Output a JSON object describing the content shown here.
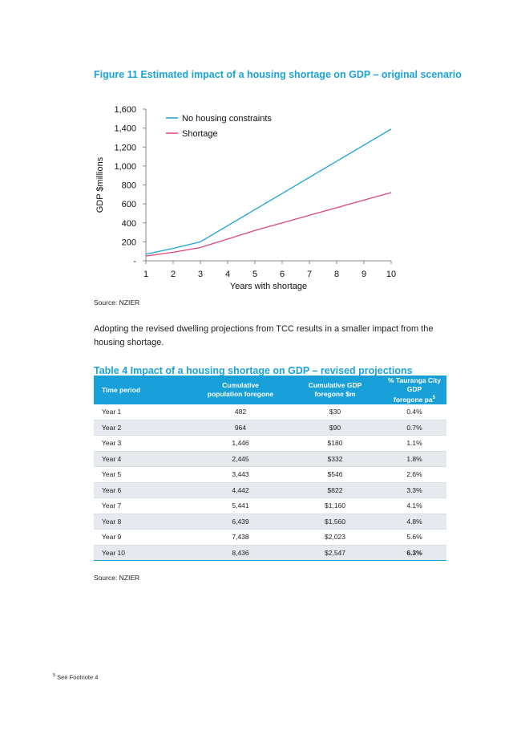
{
  "figure": {
    "title": "Figure 11 Estimated impact of a housing shortage on GDP – original scenario",
    "source": "Source: NZIER"
  },
  "chart_data": {
    "type": "line",
    "title": "Figure 11 Estimated impact of a housing shortage on GDP – original scenario",
    "xlabel": "Years with shortage",
    "ylabel": "GDP $millions",
    "x": [
      1,
      2,
      3,
      4,
      5,
      6,
      7,
      8,
      9,
      10
    ],
    "x_ticks": [
      "1",
      "2",
      "3",
      "4",
      "5",
      "6",
      "7",
      "8",
      "9",
      "10"
    ],
    "y_ticks": [
      "-",
      "200",
      "400",
      "600",
      "800",
      "1,000",
      "1,200",
      "1,400",
      "1,600"
    ],
    "ylim": [
      0,
      1600
    ],
    "legend_position": "top-left",
    "series": [
      {
        "name": "No housing constraints",
        "color": "#1ba3d9",
        "values": [
          70,
          130,
          200,
          370,
          540,
          710,
          880,
          1050,
          1220,
          1390
        ]
      },
      {
        "name": "Shortage",
        "color": "#e0457b",
        "values": [
          50,
          90,
          140,
          230,
          320,
          400,
          480,
          560,
          640,
          720
        ]
      }
    ]
  },
  "paragraph": "Adopting the revised dwelling projections from TCC results in a smaller impact from the housing shortage.",
  "table": {
    "title": "Table 4 Impact of a housing shortage on GDP – revised projections",
    "headers": {
      "col1": "Time period",
      "col2_line1": "Cumulative",
      "col2_line2": "population foregone",
      "col3_line1": "Cumulative GDP",
      "col3_line2": "foregone $m",
      "col4_line1": "% Tauranga City GDP",
      "col4_line2": "foregone pa",
      "col4_sup": "5"
    },
    "rows": [
      {
        "period": "Year 1",
        "population": "482",
        "gdp": "$30",
        "pct": "0.4%"
      },
      {
        "period": "Year 2",
        "population": "964",
        "gdp": "$90",
        "pct": "0.7%"
      },
      {
        "period": "Year 3",
        "population": "1,446",
        "gdp": "$180",
        "pct": "1.1%"
      },
      {
        "period": "Year 4",
        "population": "2,445",
        "gdp": "$332",
        "pct": "1.8%"
      },
      {
        "period": "Year 5",
        "population": "3,443",
        "gdp": "$546",
        "pct": "2.6%"
      },
      {
        "period": "Year 6",
        "population": "4,442",
        "gdp": "$822",
        "pct": "3.3%"
      },
      {
        "period": "Year 7",
        "population": "5,441",
        "gdp": "$1,160",
        "pct": "4.1%"
      },
      {
        "period": "Year 8",
        "population": "6,439",
        "gdp": "$1,560",
        "pct": "4.8%"
      },
      {
        "period": "Year 9",
        "population": "7,438",
        "gdp": "$2,023",
        "pct": "5.6%"
      },
      {
        "period": "Year 10",
        "population": "8,436",
        "gdp": "$2,547",
        "pct": "6.3%"
      }
    ],
    "source": "Source: NZIER"
  },
  "footnote": {
    "number": "5",
    "text": "See Footnote 4"
  }
}
